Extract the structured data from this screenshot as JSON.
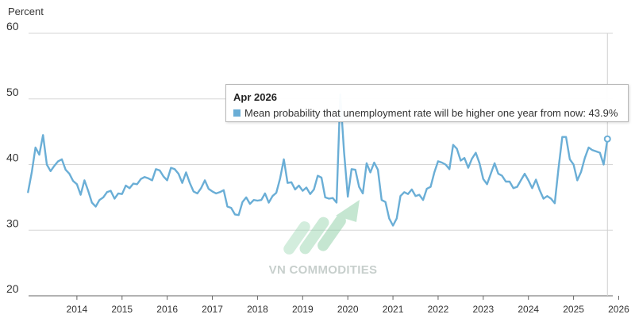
{
  "chart_data": {
    "type": "line",
    "ylabel": "Percent",
    "ylim": [
      20,
      60
    ],
    "yticks": [
      20,
      30,
      40,
      50,
      60
    ],
    "xticks": [
      "2014",
      "2015",
      "2016",
      "2017",
      "2018",
      "2019",
      "2020",
      "2021",
      "2022",
      "2023",
      "2024",
      "2025",
      "2026"
    ],
    "grid": "horizontal",
    "line_color": "#6aaed6",
    "series": [
      {
        "name": "Mean probability that unemployment rate will be higher one year from now",
        "points": [
          [
            "2013-06",
            35.8
          ],
          [
            "2013-07",
            38.8
          ],
          [
            "2013-08",
            42.6
          ],
          [
            "2013-09",
            41.5
          ],
          [
            "2013-10",
            44.5
          ],
          [
            "2013-11",
            40.0
          ],
          [
            "2013-12",
            39.0
          ],
          [
            "2014-01",
            39.8
          ],
          [
            "2014-02",
            40.5
          ],
          [
            "2014-03",
            40.8
          ],
          [
            "2014-04",
            39.2
          ],
          [
            "2014-05",
            38.6
          ],
          [
            "2014-06",
            37.5
          ],
          [
            "2014-07",
            37.0
          ],
          [
            "2014-08",
            35.4
          ],
          [
            "2014-09",
            37.6
          ],
          [
            "2014-10",
            36.0
          ],
          [
            "2014-11",
            34.2
          ],
          [
            "2014-12",
            33.6
          ],
          [
            "2015-01",
            34.6
          ],
          [
            "2015-02",
            35.0
          ],
          [
            "2015-03",
            35.8
          ],
          [
            "2015-04",
            36.0
          ],
          [
            "2015-05",
            34.8
          ],
          [
            "2015-06",
            35.6
          ],
          [
            "2015-07",
            35.5
          ],
          [
            "2015-08",
            36.8
          ],
          [
            "2015-09",
            36.4
          ],
          [
            "2015-10",
            37.1
          ],
          [
            "2015-11",
            37.0
          ],
          [
            "2015-12",
            37.8
          ],
          [
            "2016-01",
            38.1
          ],
          [
            "2016-02",
            37.9
          ],
          [
            "2016-03",
            37.6
          ],
          [
            "2016-04",
            39.3
          ],
          [
            "2016-05",
            39.1
          ],
          [
            "2016-06",
            38.2
          ],
          [
            "2016-07",
            37.6
          ],
          [
            "2016-08",
            39.5
          ],
          [
            "2016-09",
            39.3
          ],
          [
            "2016-10",
            38.6
          ],
          [
            "2016-11",
            37.2
          ],
          [
            "2016-12",
            38.8
          ],
          [
            "2017-01",
            37.2
          ],
          [
            "2017-02",
            35.9
          ],
          [
            "2017-03",
            35.6
          ],
          [
            "2017-04",
            36.4
          ],
          [
            "2017-05",
            37.6
          ],
          [
            "2017-06",
            36.3
          ],
          [
            "2017-07",
            35.9
          ],
          [
            "2017-08",
            35.6
          ],
          [
            "2017-09",
            35.8
          ],
          [
            "2017-10",
            36.1
          ],
          [
            "2017-11",
            33.6
          ],
          [
            "2017-12",
            33.4
          ],
          [
            "2018-01",
            32.4
          ],
          [
            "2018-02",
            32.3
          ],
          [
            "2018-03",
            34.3
          ],
          [
            "2018-04",
            35.0
          ],
          [
            "2018-05",
            34.0
          ],
          [
            "2018-06",
            34.6
          ],
          [
            "2018-07",
            34.5
          ],
          [
            "2018-08",
            34.6
          ],
          [
            "2018-09",
            35.6
          ],
          [
            "2018-10",
            34.2
          ],
          [
            "2018-11",
            35.2
          ],
          [
            "2018-12",
            35.7
          ],
          [
            "2019-01",
            37.9
          ],
          [
            "2019-02",
            40.8
          ],
          [
            "2019-03",
            37.2
          ],
          [
            "2019-04",
            37.3
          ],
          [
            "2019-05",
            36.2
          ],
          [
            "2019-06",
            36.8
          ],
          [
            "2019-07",
            36.0
          ],
          [
            "2019-08",
            36.5
          ],
          [
            "2019-09",
            35.5
          ],
          [
            "2019-10",
            36.2
          ],
          [
            "2019-11",
            38.3
          ],
          [
            "2019-12",
            38.0
          ],
          [
            "2020-01",
            35.0
          ],
          [
            "2020-02",
            34.8
          ],
          [
            "2020-03",
            34.9
          ],
          [
            "2020-04",
            34.2
          ],
          [
            "2020-05",
            50.7
          ],
          [
            "2020-06",
            42.0
          ],
          [
            "2020-07",
            35.1
          ],
          [
            "2020-08",
            39.3
          ],
          [
            "2020-09",
            39.2
          ],
          [
            "2020-10",
            36.6
          ],
          [
            "2020-11",
            35.6
          ],
          [
            "2020-12",
            40.2
          ],
          [
            "2021-01",
            38.8
          ],
          [
            "2021-02",
            40.3
          ],
          [
            "2021-03",
            39.2
          ],
          [
            "2021-04",
            34.6
          ],
          [
            "2021-05",
            34.3
          ],
          [
            "2021-06",
            31.8
          ],
          [
            "2021-07",
            30.7
          ],
          [
            "2021-08",
            31.8
          ],
          [
            "2021-09",
            35.2
          ],
          [
            "2021-10",
            35.8
          ],
          [
            "2021-11",
            35.5
          ],
          [
            "2021-12",
            36.2
          ],
          [
            "2022-01",
            35.2
          ],
          [
            "2022-02",
            35.4
          ],
          [
            "2022-03",
            34.6
          ],
          [
            "2022-04",
            36.3
          ],
          [
            "2022-05",
            36.6
          ],
          [
            "2022-06",
            38.8
          ],
          [
            "2022-07",
            40.5
          ],
          [
            "2022-08",
            40.3
          ],
          [
            "2022-09",
            40.0
          ],
          [
            "2022-10",
            39.3
          ],
          [
            "2022-11",
            43.0
          ],
          [
            "2022-12",
            42.4
          ],
          [
            "2023-01",
            40.6
          ],
          [
            "2023-02",
            41.0
          ],
          [
            "2023-03",
            39.5
          ],
          [
            "2023-04",
            40.9
          ],
          [
            "2023-05",
            41.8
          ],
          [
            "2023-06",
            40.2
          ],
          [
            "2023-07",
            37.8
          ],
          [
            "2023-08",
            37.0
          ],
          [
            "2023-09",
            38.6
          ],
          [
            "2023-10",
            40.2
          ],
          [
            "2023-11",
            38.6
          ],
          [
            "2023-12",
            38.3
          ],
          [
            "2024-01",
            37.4
          ],
          [
            "2024-02",
            37.4
          ],
          [
            "2024-03",
            36.4
          ],
          [
            "2024-04",
            36.6
          ],
          [
            "2024-05",
            37.6
          ],
          [
            "2024-06",
            38.6
          ],
          [
            "2024-07",
            37.6
          ],
          [
            "2024-08",
            36.4
          ],
          [
            "2024-09",
            37.7
          ],
          [
            "2024-10",
            36.1
          ],
          [
            "2024-11",
            34.8
          ],
          [
            "2024-12",
            35.2
          ],
          [
            "2025-01",
            34.8
          ],
          [
            "2025-02",
            34.1
          ],
          [
            "2025-03",
            39.4
          ],
          [
            "2025-04",
            44.2
          ],
          [
            "2025-05",
            44.2
          ],
          [
            "2025-06",
            40.8
          ],
          [
            "2025-07",
            40.0
          ],
          [
            "2025-08",
            37.6
          ],
          [
            "2025-09",
            38.9
          ],
          [
            "2025-10",
            41.0
          ],
          [
            "2025-11",
            42.6
          ],
          [
            "2025-12",
            42.2
          ],
          [
            "2026-01",
            42.0
          ],
          [
            "2026-02",
            41.8
          ],
          [
            "2026-03",
            40.0
          ],
          [
            "2026-04",
            43.9
          ]
        ]
      }
    ],
    "tooltip": {
      "title": "Apr 2026",
      "label": "Mean probability that unemployment rate will be higher one year from now: 43.9%"
    },
    "highlight": {
      "x": "2026-04",
      "y": 43.9
    }
  },
  "watermark": {
    "text": "VN COMMODITIES"
  }
}
